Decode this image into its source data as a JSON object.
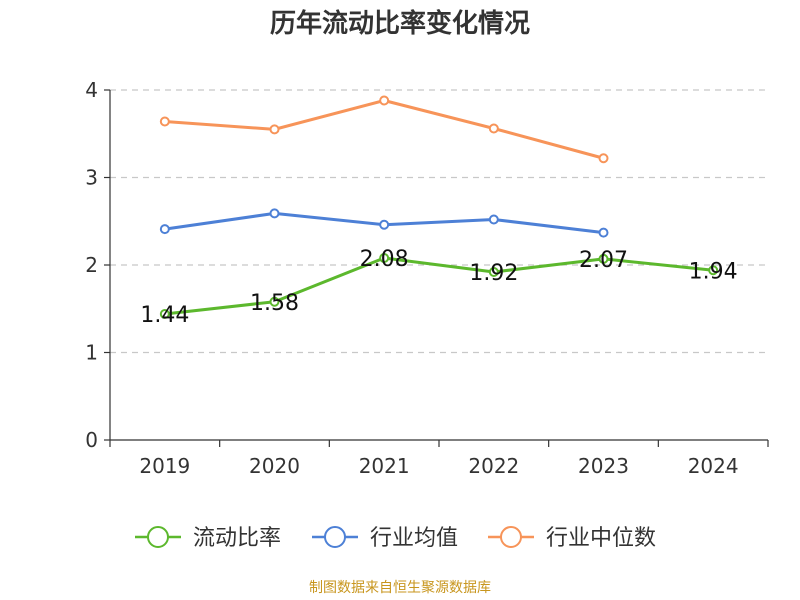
{
  "chart_data": {
    "type": "line",
    "title": "历年流动比率变化情况",
    "categories": [
      "2019",
      "2020",
      "2021",
      "2022",
      "2023",
      "2024"
    ],
    "ylim": [
      0,
      4
    ],
    "yticks": [
      "0",
      "1",
      "2",
      "3",
      "4"
    ],
    "grid": true,
    "legend_position": "bottom",
    "series": [
      {
        "name": "流动比率",
        "color": "#5cb82d",
        "values": [
          1.44,
          1.58,
          2.08,
          1.92,
          2.07,
          1.94
        ],
        "labels": [
          "1.44",
          "1.58",
          "2.08",
          "1.92",
          "2.07",
          "1.94"
        ]
      },
      {
        "name": "行业均值",
        "color": "#4d80d6",
        "values": [
          2.41,
          2.59,
          2.46,
          2.52,
          2.37,
          null
        ]
      },
      {
        "name": "行业中位数",
        "color": "#f79459",
        "values": [
          3.64,
          3.55,
          3.88,
          3.56,
          3.22,
          null
        ]
      }
    ]
  },
  "footer": {
    "source": "制图数据来自恒生聚源数据库"
  }
}
